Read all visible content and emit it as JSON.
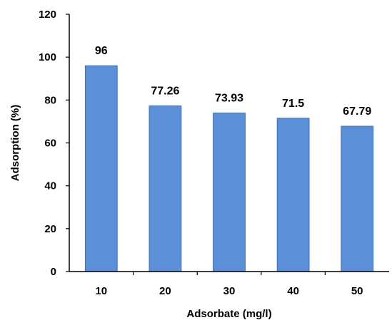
{
  "chart_data": {
    "type": "bar",
    "title": "",
    "xlabel": "Adsorbate (mg/l)",
    "ylabel": "Adsorption (%)",
    "categories": [
      "10",
      "20",
      "30",
      "40",
      "50"
    ],
    "values": [
      96,
      77.26,
      73.93,
      71.5,
      67.79
    ],
    "data_labels": [
      "96",
      "77.26",
      "73.93",
      "71.5",
      "67.79"
    ],
    "ylim": [
      0,
      120
    ],
    "yticks": [
      0,
      20,
      40,
      60,
      80,
      100,
      120
    ],
    "ytick_labels": [
      "0",
      "20",
      "40",
      "60",
      "80",
      "100",
      "120"
    ],
    "grid": false,
    "legend": "none",
    "colors": {
      "bar_fill": "#5b8fd8",
      "bar_stroke": "#3f6fb6",
      "axis": "#000000"
    }
  }
}
